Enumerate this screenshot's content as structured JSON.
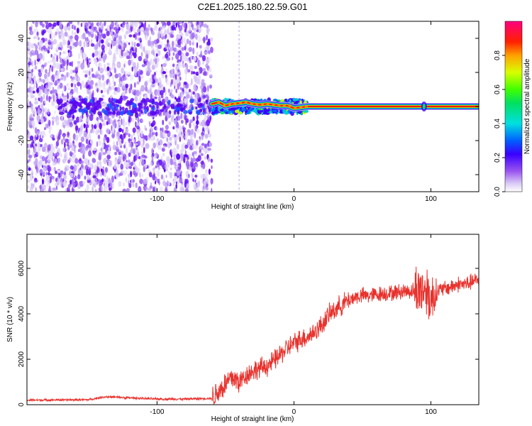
{
  "chart_data": [
    {
      "type": "heatmap",
      "title": "C2E1.2025.180.22.59.G01",
      "xlabel": "Height of straight line (km)",
      "ylabel": "Frequency (Hz)",
      "xlim": [
        -195,
        135
      ],
      "ylim": [
        -50,
        50
      ],
      "x_ticks": [
        -100,
        0,
        100
      ],
      "y_ticks": [
        -40,
        -20,
        0,
        20,
        40
      ],
      "noise_region_x": [
        -195,
        -60
      ],
      "transition_region_x": [
        -60,
        10
      ],
      "signal_line": [
        {
          "x": -60,
          "y": 1.5
        },
        {
          "x": -55,
          "y": 2.5
        },
        {
          "x": -50,
          "y": 0.5
        },
        {
          "x": -45,
          "y": 1.5
        },
        {
          "x": -40,
          "y": 2
        },
        {
          "x": -35,
          "y": 2.5
        },
        {
          "x": -30,
          "y": 1.5
        },
        {
          "x": -25,
          "y": 1
        },
        {
          "x": -20,
          "y": 1.5
        },
        {
          "x": -15,
          "y": 1
        },
        {
          "x": -10,
          "y": 0.5
        },
        {
          "x": -5,
          "y": 0.5
        },
        {
          "x": 0,
          "y": -1
        },
        {
          "x": 5,
          "y": -0.5
        },
        {
          "x": 10,
          "y": 0
        },
        {
          "x": 135,
          "y": 0
        }
      ],
      "colorbar": {
        "label": "Normalized spectral amplitude",
        "range": [
          0,
          1
        ],
        "ticks": [
          "0.0",
          "0.2",
          "0.4",
          "0.6",
          "0.8"
        ],
        "tick_values": [
          0.0,
          0.2,
          0.4,
          0.6,
          0.8
        ]
      }
    },
    {
      "type": "line",
      "xlabel": "Height of straight line (km)",
      "ylabel": "SNR (10 * v/v)",
      "xlim": [
        -195,
        135
      ],
      "ylim": [
        0,
        7500
      ],
      "x_ticks": [
        -100,
        0,
        100
      ],
      "y_ticks": [
        0,
        2000,
        4000,
        6000
      ],
      "line_color": "#e8312c",
      "series": [
        {
          "x": [
            -195,
            -150,
            -138,
            -100,
            -80,
            -60,
            -50,
            -45,
            -40,
            -35,
            -30,
            -25,
            -20,
            -15,
            -10,
            -5,
            0,
            5,
            10,
            15,
            20,
            25,
            30,
            35,
            40,
            45,
            50,
            55,
            60,
            65,
            70,
            75,
            80,
            85,
            90,
            95,
            98,
            100,
            105,
            110,
            115,
            120,
            125,
            130,
            135
          ],
          "values": [
            200,
            220,
            350,
            250,
            250,
            280,
            900,
            1200,
            1000,
            1300,
            1500,
            1600,
            1700,
            1900,
            2200,
            2500,
            2700,
            2900,
            3000,
            3200,
            3500,
            3900,
            4200,
            4400,
            4600,
            4750,
            4800,
            4800,
            4850,
            4900,
            4900,
            4950,
            5000,
            5000,
            5050,
            5100,
            5000,
            4600,
            5000,
            5100,
            5200,
            5300,
            5300,
            5400,
            5500
          ]
        }
      ]
    }
  ]
}
